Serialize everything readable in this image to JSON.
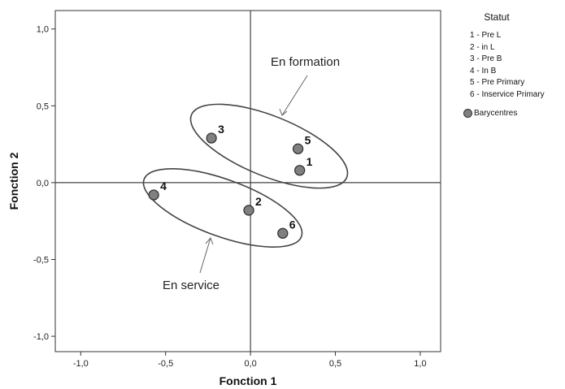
{
  "chart_data": {
    "type": "scatter",
    "xlabel": "Fonction 1",
    "ylabel": "Fonction 2",
    "xlim": [
      -1.15,
      1.12
    ],
    "ylim": [
      -1.1,
      1.12
    ],
    "xticks": [
      -1.0,
      -0.5,
      0.0,
      0.5,
      1.0
    ],
    "yticks": [
      -1.0,
      -0.5,
      0.0,
      0.5,
      1.0
    ],
    "xtick_labels": [
      "-1,0",
      "-0,5",
      "0,0",
      "0,5",
      "1,0"
    ],
    "ytick_labels": [
      "-1,0",
      "-0,5",
      "0,0",
      "0,5",
      "1,0"
    ],
    "reference_lines": {
      "x": 0,
      "y": 0
    },
    "marker_color": "#808080",
    "points": [
      {
        "label": "1",
        "x": 0.29,
        "y": 0.08
      },
      {
        "label": "2",
        "x": -0.01,
        "y": -0.18
      },
      {
        "label": "3",
        "x": -0.23,
        "y": 0.29
      },
      {
        "label": "4",
        "x": -0.57,
        "y": -0.08
      },
      {
        "label": "5",
        "x": 0.28,
        "y": 0.22
      },
      {
        "label": "6",
        "x": 0.19,
        "y": -0.33
      }
    ],
    "groups": [
      {
        "label": "En formation",
        "members": [
          "1",
          "3",
          "5"
        ]
      },
      {
        "label": "En service",
        "members": [
          "2",
          "4",
          "6"
        ]
      }
    ],
    "legend": {
      "title": "Statut",
      "placement": "top-right, outside plot",
      "items": [
        "1 - Pre L",
        "2 - in L",
        "3 - Pre B",
        "4 - In B",
        "5 - Pre Primary",
        "6 - Inservice Primary"
      ],
      "marker_label": "Barycentres"
    }
  }
}
